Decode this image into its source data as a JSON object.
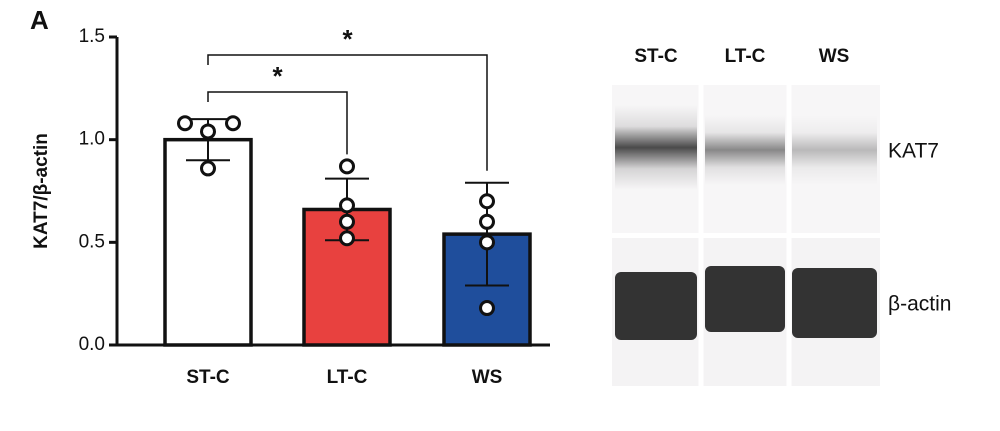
{
  "panel_label": "A",
  "chart_data": {
    "type": "bar",
    "y_label": "KAT7/β-actin",
    "categories": [
      "ST-C",
      "LT-C",
      "WS"
    ],
    "values": [
      1.0,
      0.66,
      0.54
    ],
    "errors": [
      0.1,
      0.15,
      0.25
    ],
    "points": [
      [
        1.08,
        1.04,
        1.08,
        0.86
      ],
      [
        0.87,
        0.68,
        0.6,
        0.52
      ],
      [
        0.7,
        0.6,
        0.5,
        0.18
      ]
    ],
    "colors": [
      "#ffffff",
      "#e8413f",
      "#1f4e9c"
    ],
    "ylim": [
      0,
      1.5
    ],
    "yticks": [
      {
        "value": 0,
        "label": "0.0"
      },
      0.5,
      {
        "value": 1,
        "label": "1.0"
      },
      1.5
    ],
    "significance": [
      {
        "between": [
          "ST-C",
          "LT-C"
        ],
        "label": "*"
      },
      {
        "between": [
          "ST-C",
          "WS"
        ],
        "label": "*"
      }
    ]
  },
  "blot": {
    "lanes": [
      "ST-C",
      "LT-C",
      "WS"
    ],
    "bands": [
      "KAT7",
      "β-actin"
    ]
  }
}
